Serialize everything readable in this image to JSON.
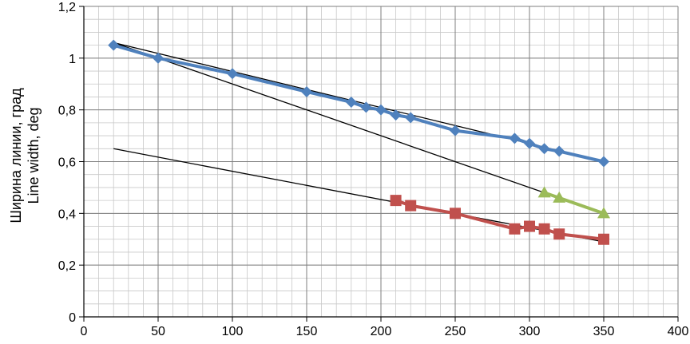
{
  "chart_data": {
    "type": "scatter",
    "title": "",
    "xlabel": "",
    "ylabel_lines": [
      "Ширина линии, град",
      "Line width, deg"
    ],
    "xlim": [
      0,
      400
    ],
    "ylim": [
      0,
      1.2
    ],
    "x_ticks": [
      "0",
      "50",
      "100",
      "150",
      "200",
      "250",
      "300",
      "350",
      "400"
    ],
    "y_ticks": [
      "0",
      "0,2",
      "0,4",
      "0,6",
      "0,8",
      "1",
      "1,2"
    ],
    "grid": true,
    "minor_grid": true,
    "legend": "none",
    "series": [
      {
        "marker": "diamond",
        "color": "#4F81BD",
        "connected": true,
        "points": [
          [
            20,
            1.05
          ],
          [
            50,
            1.0
          ],
          [
            100,
            0.94
          ],
          [
            150,
            0.87
          ],
          [
            180,
            0.83
          ],
          [
            190,
            0.81
          ],
          [
            200,
            0.8
          ],
          [
            210,
            0.78
          ],
          [
            220,
            0.77
          ],
          [
            250,
            0.72
          ],
          [
            290,
            0.69
          ],
          [
            300,
            0.67
          ],
          [
            310,
            0.65
          ],
          [
            320,
            0.64
          ],
          [
            350,
            0.6
          ]
        ]
      },
      {
        "marker": "square",
        "color": "#C0504D",
        "connected": true,
        "points": [
          [
            210,
            0.45
          ],
          [
            220,
            0.43
          ],
          [
            250,
            0.4
          ],
          [
            290,
            0.34
          ],
          [
            300,
            0.35
          ],
          [
            310,
            0.34
          ],
          [
            320,
            0.32
          ],
          [
            350,
            0.3
          ]
        ]
      },
      {
        "marker": "triangle",
        "color": "#9BBB59",
        "connected": true,
        "points": [
          [
            310,
            0.48
          ],
          [
            320,
            0.46
          ],
          [
            350,
            0.4
          ]
        ]
      }
    ],
    "trendlines": [
      {
        "color": "#000000",
        "from": [
          20,
          1.06
        ],
        "to": [
          350,
          0.6
        ]
      },
      {
        "color": "#000000",
        "from": [
          20,
          1.06
        ],
        "to": [
          350,
          0.4
        ]
      },
      {
        "color": "#000000",
        "from": [
          20,
          0.65
        ],
        "to": [
          350,
          0.29
        ]
      }
    ]
  }
}
